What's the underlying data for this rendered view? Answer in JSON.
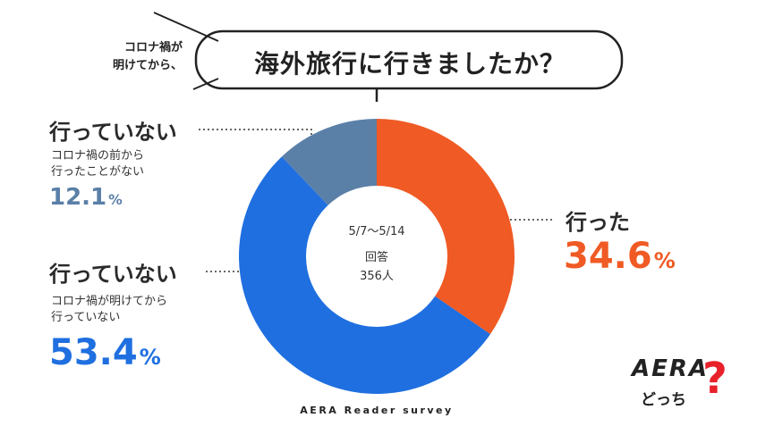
{
  "header": {
    "aside_line1": "コロナ禍が",
    "aside_line2": "明けてから、",
    "question": "海外旅行に行きましたか？"
  },
  "center": {
    "period": "5/7〜5/14",
    "respondents_label": "回答",
    "respondents_count": "356人"
  },
  "labels": [
    {
      "main": "行っていない",
      "sub1": "コロナ禍の前から",
      "sub2": "行ったことがない",
      "value": "12.1",
      "unit": "%"
    },
    {
      "main": "行った",
      "value": "34.6",
      "unit": "%"
    },
    {
      "main": "行っていない",
      "sub1": "コロナ禍が明けてから",
      "sub2": "行っていない",
      "value": "53.4",
      "unit": "%"
    }
  ],
  "source": "AERA Reader survey",
  "logo": {
    "word": "AERA",
    "sub": "どっち",
    "mark": "?"
  },
  "chart_data": {
    "type": "pie",
    "donut": true,
    "categories": [
      "行った",
      "行っていない（コロナ禍が明けてから行っていない）",
      "行っていない（コロナ禍の前から行ったことがない）"
    ],
    "values": [
      34.6,
      53.4,
      12.1
    ],
    "colors": [
      "#f05a24",
      "#1f6fe0",
      "#5b80a8"
    ],
    "start": "12 o'clock, clockwise"
  }
}
